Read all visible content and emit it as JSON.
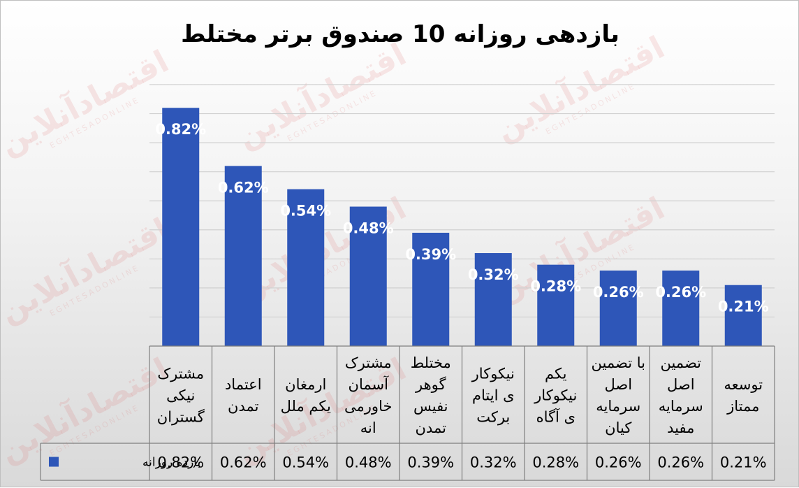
{
  "chart_data": {
    "type": "bar",
    "title": "بازدهی روزانه 10 صندوق برتر مختلط",
    "categories": [
      [
        "مشترک",
        "نیکی",
        "گستران"
      ],
      [
        "اعتماد",
        "تمدن"
      ],
      [
        "ارمغان",
        "یکم ملل"
      ],
      [
        "مشترک",
        "آسمان",
        "خاورمی",
        "انه"
      ],
      [
        "مختلط",
        "گوهر",
        "نفیس",
        "تمدن"
      ],
      [
        "نیکوکار",
        "ی ایتام",
        "برکت"
      ],
      [
        "یکم",
        "نیکوکار",
        "ی آگاه"
      ],
      [
        "با تضمین",
        "اصل",
        "سرمایه",
        "کیان"
      ],
      [
        "تضمین",
        "اصل",
        "سرمایه",
        "مفید"
      ],
      [
        "توسعه",
        "ممتاز"
      ]
    ],
    "series": [
      {
        "name": "بازده روزانه",
        "values": [
          0.82,
          0.62,
          0.54,
          0.48,
          0.39,
          0.32,
          0.28,
          0.26,
          0.26,
          0.21
        ],
        "labels": [
          "0.82%",
          "0.62%",
          "0.54%",
          "0.48%",
          "0.39%",
          "0.32%",
          "0.28%",
          "0.26%",
          "0.26%",
          "0.21%"
        ],
        "color": "#2E56B8"
      }
    ],
    "ylim": [
      0,
      0.9
    ],
    "ytick_step": 0.1,
    "grid": true,
    "legend": "bottom-left in data table",
    "xlabel": "",
    "ylabel": ""
  },
  "watermark": {
    "text": "اقتصادآنلاین",
    "subtext": "EGHTESADONLINE"
  },
  "colors": {
    "bar": "#2E56B8",
    "gridline": "#d0d0d0",
    "table_border": "#7f7f7f"
  }
}
